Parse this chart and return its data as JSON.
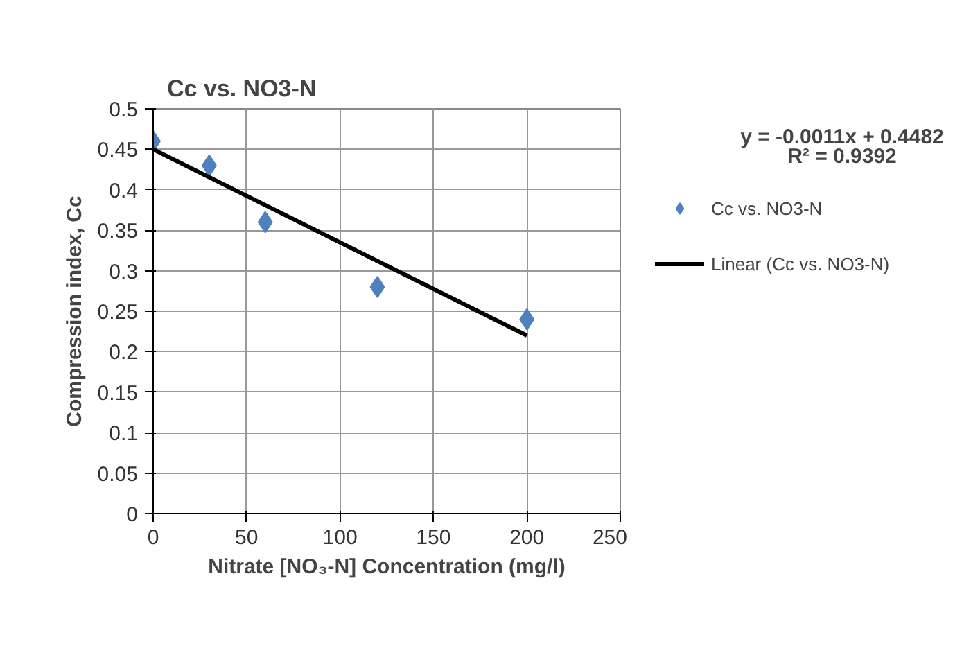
{
  "chart_data": {
    "type": "scatter",
    "title": "Cc vs. NO3-N",
    "xlabel": "Nitrate [NO₃-N] Concentration (mg/l)",
    "ylabel": "Compression index, Cc",
    "series": [
      {
        "name": "Cc vs. NO3-N",
        "color": "#4f81bd",
        "marker": "diamond",
        "x": [
          0,
          30,
          60,
          120,
          200
        ],
        "values": [
          0.46,
          0.43,
          0.36,
          0.28,
          0.24
        ]
      },
      {
        "name": "Linear (Cc vs. NO3-N)",
        "type": "line",
        "color": "#000000",
        "marker": "none",
        "line_style": "solid",
        "x": [
          0,
          200
        ],
        "values": [
          0.45,
          0.22
        ]
      }
    ],
    "annotations": [
      "y = -0.0011x + 0.4482",
      "R² = 0.9392"
    ],
    "xlim": [
      0,
      250
    ],
    "xticks": [
      0,
      50,
      100,
      150,
      200,
      250
    ],
    "ylim": [
      0,
      0.5
    ],
    "yticks": [
      0,
      0.05,
      0.1,
      0.15,
      0.2,
      0.25,
      0.3,
      0.35,
      0.4,
      0.45,
      0.5
    ],
    "grid": true,
    "legend": "right"
  }
}
